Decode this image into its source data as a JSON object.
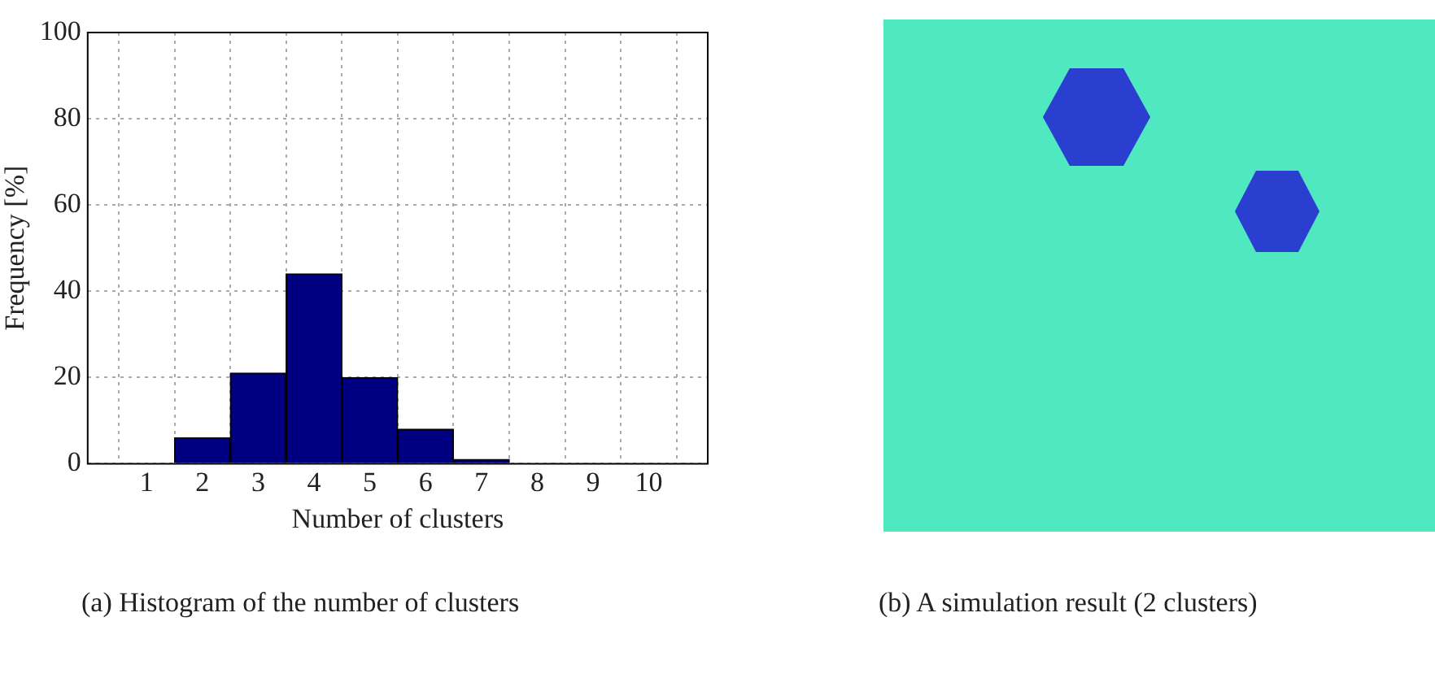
{
  "chart_data": [
    {
      "type": "histogram",
      "xlabel": "Number of clusters",
      "ylabel": "Frequency [%]",
      "bins": [
        0.5,
        1.5,
        2.5,
        3.5,
        4.5,
        5.5,
        6.5,
        7.5,
        8.5,
        9.5,
        10.5
      ],
      "values": [
        0,
        6,
        21,
        44,
        20,
        8,
        1,
        0,
        0,
        0
      ],
      "color": "#000080",
      "xlim": [
        0.5,
        10.5
      ],
      "xticks": [
        1,
        2,
        3,
        4,
        5,
        6,
        7,
        8,
        9,
        10
      ],
      "ylim": [
        0,
        100
      ],
      "yticks": [
        0,
        20,
        40,
        60,
        80,
        100
      ],
      "grid": true,
      "line_style": "dotted",
      "annotations": [
        "(a)  Histogram of the number of clusters"
      ]
    },
    {
      "type": "other",
      "annotations": [
        "(b)  A simulation result (2 clusters)"
      ]
    }
  ]
}
